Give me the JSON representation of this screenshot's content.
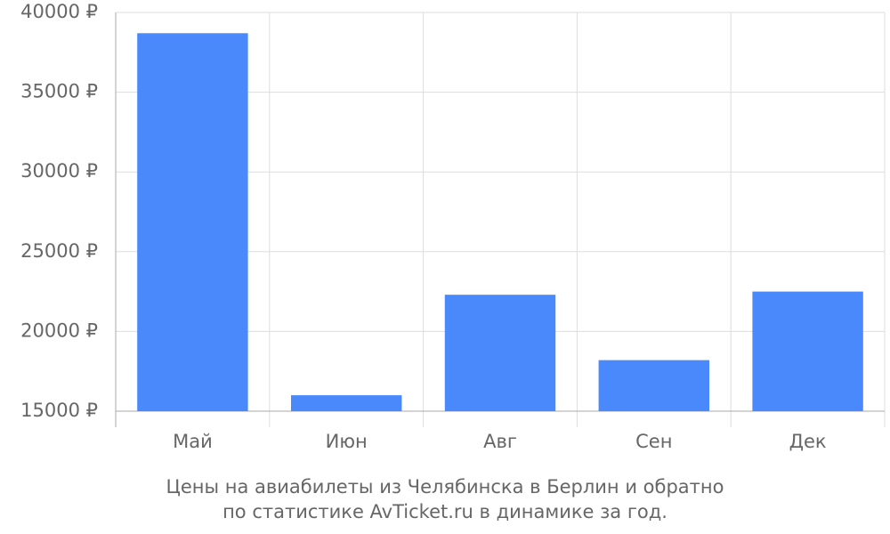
{
  "chart_data": {
    "type": "bar",
    "title": [
      "Цены на авиабилеты из Челябинска в Берлин и обратно",
      "по статистике AvTicket.ru в динамике за год."
    ],
    "categories": [
      "Май",
      "Июн",
      "Авг",
      "Сен",
      "Дек"
    ],
    "values": [
      38700,
      16000,
      22300,
      18200,
      22500
    ],
    "color": "#4a89fb",
    "ylim": [
      15000,
      40000
    ],
    "yticks": [
      {
        "value": 15000,
        "label": "15000 ₽"
      },
      {
        "value": 20000,
        "label": "20000 ₽"
      },
      {
        "value": 25000,
        "label": "25000 ₽"
      },
      {
        "value": 30000,
        "label": "30000 ₽"
      },
      {
        "value": 35000,
        "label": "35000 ₽"
      },
      {
        "value": 40000,
        "label": "40000 ₽"
      }
    ],
    "grid": true
  }
}
